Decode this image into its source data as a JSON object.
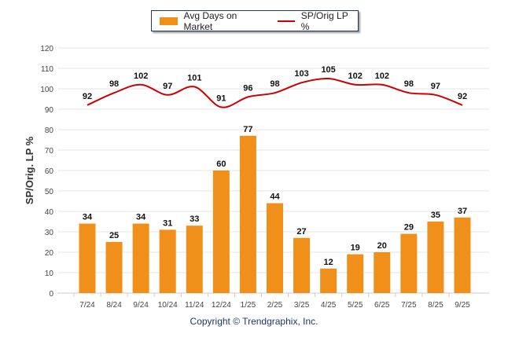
{
  "chart_data": {
    "type": "bar",
    "categories": [
      "7/24",
      "8/24",
      "9/24",
      "10/24",
      "11/24",
      "12/24",
      "1/25",
      "2/25",
      "3/25",
      "4/25",
      "5/25",
      "6/25",
      "7/25",
      "8/25",
      "9/25"
    ],
    "series": [
      {
        "name": "Avg Days on Market",
        "type": "bar",
        "color": "#f0901a",
        "values": [
          34,
          25,
          34,
          31,
          33,
          60,
          77,
          44,
          27,
          12,
          19,
          20,
          29,
          35,
          37
        ]
      },
      {
        "name": "SP/Orig LP %",
        "type": "line",
        "color": "#cc0000",
        "values": [
          92,
          98,
          102,
          97,
          101,
          91,
          96,
          98,
          103,
          105,
          102,
          102,
          98,
          97,
          92
        ]
      }
    ],
    "ylabel": "SP/Orig. LP %",
    "ylim": [
      0,
      120
    ],
    "yticks": [
      0,
      10,
      20,
      30,
      40,
      50,
      60,
      70,
      80,
      90,
      100,
      110,
      120
    ],
    "grid": true,
    "legend": "top-center"
  },
  "footer": "Copyright © Trendgraphix, Inc."
}
